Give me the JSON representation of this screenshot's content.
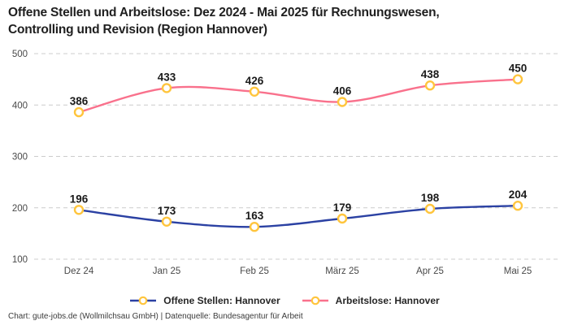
{
  "header": {
    "title_lines": [
      "Offene Stellen und Arbeitslose: Dez 2024 - Mai 2025 für Rechnungswesen,",
      "Controlling und Revision (Region Hannover)"
    ]
  },
  "chart_data": {
    "type": "line",
    "title": "Offene Stellen und Arbeitslose: Dez 2024 - Mai 2025 für Rechnungswesen, Controlling und Revision (Region Hannover)",
    "categories": [
      "Dez 24",
      "Jan 25",
      "Feb 25",
      "März 25",
      "Apr 25",
      "Mai 25"
    ],
    "series": [
      {
        "name": "Offene Stellen: Hannover",
        "color": "#2B41A3",
        "values": [
          196,
          173,
          163,
          179,
          198,
          204
        ]
      },
      {
        "name": "Arbeitslose: Hannover",
        "color": "#F9718C",
        "values": [
          386,
          433,
          426,
          406,
          438,
          450
        ]
      }
    ],
    "marker_color": "#FFC53D",
    "marker_fill": "#ffffff",
    "grid_color": "#cccccc",
    "ylim": [
      100,
      500
    ],
    "yticks": [
      100,
      200,
      300,
      400,
      500
    ],
    "grid": "dashed-horizontal",
    "legend_position": "bottom",
    "curve": "smooth",
    "data_labels": true
  },
  "footer": {
    "credit": "Chart: gute-jobs.de (Wollmilchsau GmbH) | Datenquelle: Bundesagentur für Arbeit"
  }
}
